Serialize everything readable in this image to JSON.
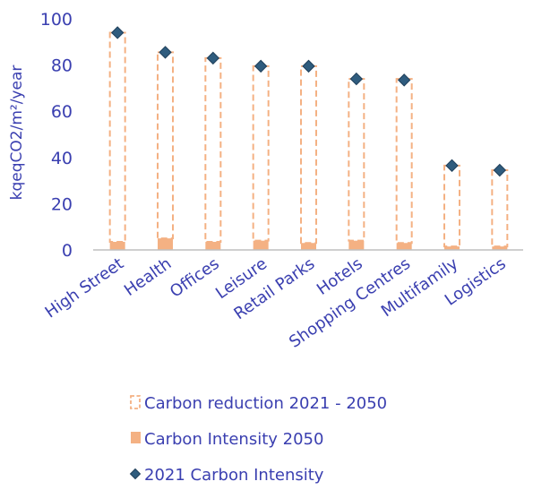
{
  "chart_data": {
    "type": "bar",
    "title": "",
    "xlabel": "",
    "ylabel": "kqeqCO2/m²/year",
    "ylim": [
      0,
      100
    ],
    "yticks": [
      0,
      20,
      40,
      60,
      80,
      100
    ],
    "grid": false,
    "legend_position": "bottom",
    "categories": [
      "High Street",
      "Health",
      "Offices",
      "Leisure",
      "Retail Parks",
      "Hotels",
      "Shopping Centres",
      "Multifamily",
      "Logistics"
    ],
    "series": [
      {
        "name": "Carbon reduction 2021 - 2050",
        "style": "dashed-outline-bar",
        "color": "#F4B183",
        "values": [
          90.5,
          80.5,
          79.5,
          75.5,
          76.5,
          70.0,
          71.0,
          35.0,
          33.0
        ]
      },
      {
        "name": "Carbon Intensity 2050",
        "style": "solid-bar",
        "color": "#F4B183",
        "values": [
          3.5,
          5.0,
          3.5,
          4.0,
          3.0,
          4.0,
          3.0,
          1.5,
          1.5
        ]
      },
      {
        "name": "2021 Carbon Intensity",
        "style": "diamond-marker",
        "color": "#2F5C7E",
        "values": [
          94,
          85.5,
          83,
          79.5,
          79.5,
          74,
          73.5,
          36.5,
          34.5
        ]
      }
    ],
    "colors": {
      "text": "#3A3FB0",
      "axis": "#BFBFBF",
      "bar": "#F4B183",
      "marker": "#2F5C7E",
      "marker_edge": "#1F3F5A"
    }
  }
}
